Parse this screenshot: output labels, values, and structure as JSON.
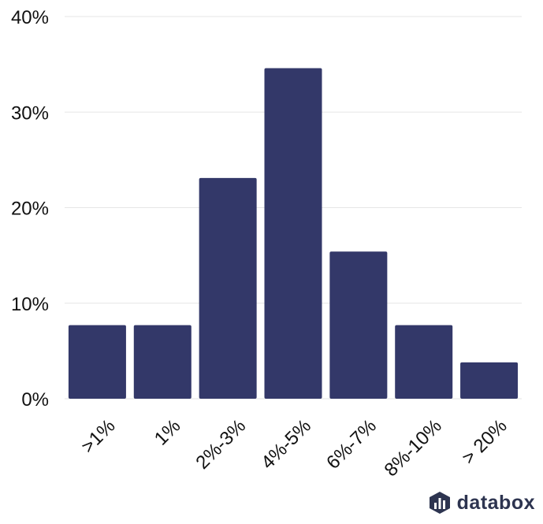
{
  "chart_data": {
    "type": "bar",
    "categories": [
      ">1%",
      "1%",
      "2%-3%",
      "4%-5%",
      "6%-7%",
      "8%-10%",
      "> 20%"
    ],
    "values": [
      7.7,
      7.7,
      23.1,
      34.6,
      15.4,
      7.7,
      3.8
    ],
    "title": "",
    "xlabel": "",
    "ylabel": "",
    "ylim": [
      0,
      40
    ],
    "yticks": [
      0,
      10,
      20,
      30,
      40
    ],
    "ytick_labels": [
      "0%",
      "10%",
      "20%",
      "30%",
      "40%"
    ],
    "grid": true,
    "bar_color": "#333869"
  },
  "brand": {
    "name": "databox",
    "icon": "databox-logo-icon",
    "color": "#2d3450"
  }
}
